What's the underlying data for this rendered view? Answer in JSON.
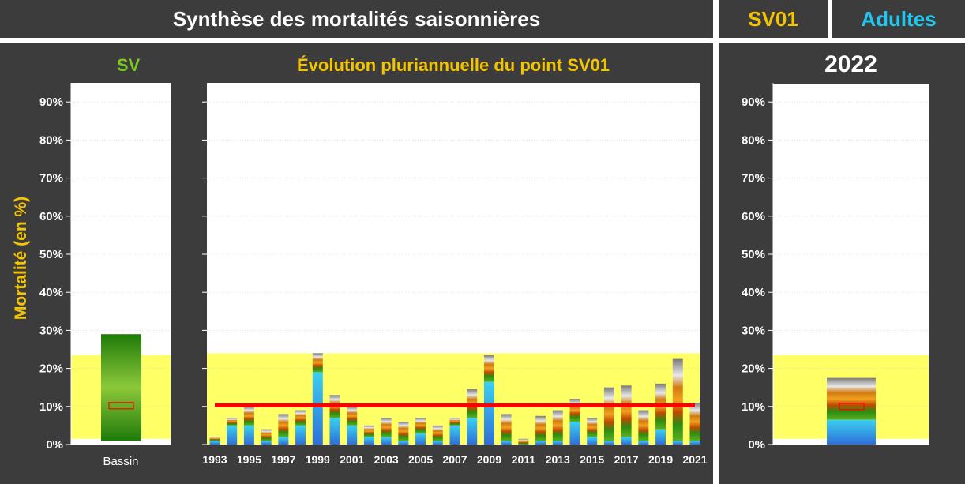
{
  "header": {
    "title": "Synthèse des mortalités saisonnières",
    "station": "SV01",
    "category": "Adultes"
  },
  "colors": {
    "background": "#3c3c3c",
    "station_text": "#f5c400",
    "category_text": "#1ec8f0",
    "ref_band": "#ffff66",
    "trend_line": "#ff0000"
  },
  "chart_data": [
    {
      "type": "bar",
      "title": "SV",
      "ylabel": "Mortalité (en %)",
      "categories": [
        "Bassin"
      ],
      "values": [
        29
      ],
      "ylim": [
        0,
        95
      ],
      "yticks": [
        "0%",
        "10%",
        "20%",
        "30%",
        "40%",
        "50%",
        "60%",
        "70%",
        "80%",
        "90%"
      ],
      "reference_band": [
        1.5,
        23.5
      ],
      "median_marker": 10.2
    },
    {
      "type": "bar",
      "title": "Évolution pluriannuelle du point SV01",
      "x": [
        1993,
        1994,
        1995,
        1996,
        1997,
        1998,
        1999,
        2000,
        2001,
        2002,
        2003,
        2004,
        2005,
        2006,
        2007,
        2008,
        2009,
        2010,
        2011,
        2012,
        2013,
        2014,
        2015,
        2016,
        2017,
        2018,
        2019,
        2020,
        2021
      ],
      "xtick_labels": [
        "1993",
        "1995",
        "1997",
        "1999",
        "2001",
        "2003",
        "2005",
        "2007",
        "2009",
        "2011",
        "2013",
        "2015",
        "2017",
        "2019",
        "2021"
      ],
      "totals": [
        2,
        7,
        10,
        4,
        8,
        9,
        24,
        13,
        10,
        5,
        7,
        6,
        7,
        5,
        7,
        14.5,
        23.5,
        8,
        1.5,
        7.5,
        9,
        12,
        7,
        15,
        15.5,
        9,
        16,
        22.5,
        11
      ],
      "blue_portion": [
        1,
        5,
        5,
        1,
        2,
        5,
        19,
        7,
        5,
        2,
        2,
        1,
        3,
        1,
        5,
        7,
        16.5,
        1,
        0,
        1,
        1,
        6,
        2,
        1,
        2,
        1,
        4,
        1,
        1
      ],
      "ylim": [
        0,
        95
      ],
      "reference_band": [
        0,
        24
      ],
      "mean_line": 10.3
    },
    {
      "type": "bar",
      "title": "2022",
      "categories": [
        "2022"
      ],
      "values": [
        17.5
      ],
      "blue_portion": 6.5,
      "ylim": [
        0,
        95
      ],
      "yticks": [
        "0%",
        "10%",
        "20%",
        "30%",
        "40%",
        "50%",
        "60%",
        "70%",
        "80%",
        "90%"
      ],
      "reference_band": [
        1.5,
        23.5
      ],
      "median_marker": 10
    }
  ]
}
